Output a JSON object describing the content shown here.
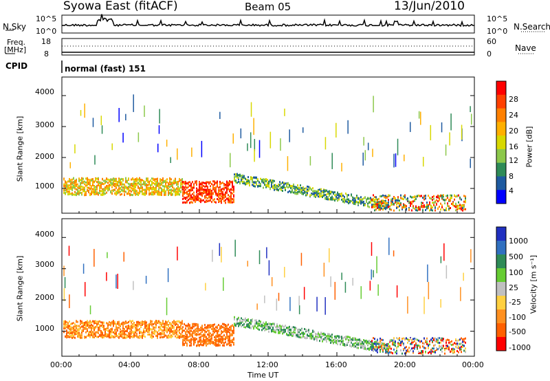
{
  "header": {
    "station": "Syowa East (fitACF)",
    "beam": "Beam 05",
    "date": "13/Jun/2010"
  },
  "aux_panels": {
    "nsky_label": "N.Sky",
    "nsky_ticks": [
      "10^5",
      "10^0"
    ],
    "nsearch_label": "N.Search",
    "nsearch_ticks": [
      "10^5",
      "10^0"
    ],
    "freq_label_1": "Freq.",
    "freq_label_2": "[MHz]",
    "freq_ticks": [
      "18",
      "8"
    ],
    "nave_label": "Nave",
    "nave_ticks": [
      "60",
      "0"
    ],
    "cpid_label": "CPID",
    "cpid_value": "normal (fast) 151"
  },
  "chart_data": [
    {
      "type": "heatmap",
      "quantity": "Power",
      "ylabel": "Slant Range [km]",
      "xlabel": "Time UT",
      "yticks": [
        "4000",
        "3000",
        "2000",
        "1000"
      ],
      "ylim": [
        200,
        4600
      ],
      "xticks": [
        "00:00",
        "04:00",
        "08:00",
        "12:00",
        "16:00",
        "20:00",
        "00:00"
      ],
      "colorbar_label": "Power [dB]",
      "colorbar_ticks": [
        "28",
        "24",
        "20",
        "16",
        "12",
        "8",
        "4"
      ],
      "colorbar_colors": [
        "#ff0000",
        "#ff4000",
        "#ff8000",
        "#ffb000",
        "#d8d800",
        "#8cc84b",
        "#2e8b57",
        "#1e5aa0",
        "#0000ff"
      ],
      "ranges_km_by_hour": [
        {
          "hour": 1,
          "range": 950
        },
        {
          "hour": 3,
          "range": 1000
        },
        {
          "hour": 5,
          "range": 1050
        },
        {
          "hour": 8,
          "range": 800
        },
        {
          "hour": 10,
          "range": 650
        },
        {
          "hour": 13,
          "range": 1000
        },
        {
          "hour": 17,
          "range": 900
        },
        {
          "hour": 21,
          "range": 500
        }
      ]
    },
    {
      "type": "heatmap",
      "quantity": "Velocity",
      "ylabel": "Slant Range [km]",
      "xlabel": "Time UT",
      "yticks": [
        "4000",
        "3000",
        "2000",
        "1000"
      ],
      "ylim": [
        200,
        4600
      ],
      "xticks": [
        "00:00",
        "04:00",
        "08:00",
        "12:00",
        "16:00",
        "20:00",
        "00:00"
      ],
      "colorbar_label": "Velocity [m s⁻¹]",
      "colorbar_ticks": [
        "1000",
        "500",
        "100",
        "25",
        "-25",
        "-100",
        "-500",
        "-1000"
      ],
      "colorbar_colors": [
        "#2030c0",
        "#3070c0",
        "#2e8b57",
        "#66cc33",
        "#c0c0c0",
        "#ffd040",
        "#ff9020",
        "#ff6000",
        "#ff0000"
      ]
    }
  ]
}
